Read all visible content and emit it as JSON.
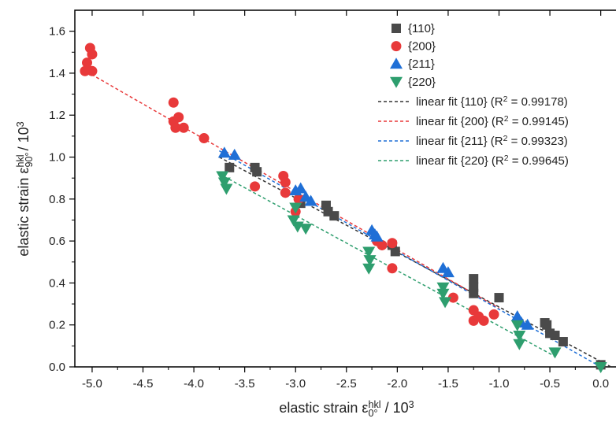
{
  "chart_data": {
    "type": "scatter",
    "x_label": [
      {
        "text": "elastic strain ε"
      },
      {
        "text": "0°",
        "style": "sub"
      },
      {
        "text": "hkl",
        "style": "sup"
      },
      {
        "text": " / 10"
      },
      {
        "text": "3",
        "style": "sup"
      }
    ],
    "y_label": [
      {
        "text": "elastic strain ε"
      },
      {
        "text": "90°",
        "style": "sub"
      },
      {
        "text": "hkl",
        "style": "sup"
      },
      {
        "text": " / 10"
      },
      {
        "text": "3",
        "style": "sup"
      }
    ],
    "xlim": [
      -5.17,
      0.15
    ],
    "ylim": [
      0,
      1.7
    ],
    "xticks": [
      {
        "value": -5,
        "label": "-5.0"
      },
      -4.5,
      {
        "value": -4,
        "label": "-4.0"
      },
      -3.5,
      {
        "value": -3,
        "label": "-3.0"
      },
      -2.5,
      {
        "value": -2,
        "label": "-2.0"
      },
      -1.5,
      {
        "value": -1,
        "label": "-1.0"
      },
      -0.5,
      {
        "value": 0,
        "label": "0.0"
      }
    ],
    "yticks": [
      {
        "value": 0,
        "label": "0.0"
      },
      0.2,
      0.4,
      0.6,
      0.8,
      {
        "value": 1,
        "label": "1.0"
      },
      1.2,
      1.4,
      1.6
    ],
    "series": [
      {
        "name": "{110}",
        "color": "#4a4a4a",
        "marker": "square",
        "x": [
          -3.65,
          -3.4,
          -3.38,
          -2.95,
          -2.7,
          -2.68,
          -2.62,
          -2.05,
          -2.02,
          -1.25,
          -1.25,
          -1.25,
          -1.0,
          -0.55,
          -0.53,
          -0.5,
          -0.45,
          -0.37,
          0.0
        ],
        "values": [
          0.95,
          0.95,
          0.93,
          0.78,
          0.77,
          0.74,
          0.72,
          0.58,
          0.55,
          0.42,
          0.38,
          0.35,
          0.33,
          0.21,
          0.2,
          0.16,
          0.15,
          0.12,
          0.01
        ]
      },
      {
        "name": "{200}",
        "color": "#e8393a",
        "marker": "circle",
        "x": [
          -5.02,
          -5.0,
          -5.05,
          -5.07,
          -5.0,
          -4.2,
          -4.2,
          -4.18,
          -4.15,
          -4.1,
          -3.9,
          -3.4,
          -3.12,
          -3.1,
          -3.1,
          -3.0,
          -2.97,
          -2.2,
          -2.15,
          -2.05,
          -2.05,
          -1.45,
          -1.25,
          -1.25,
          -1.2,
          -1.15,
          -1.05
        ],
        "values": [
          1.52,
          1.49,
          1.45,
          1.41,
          1.41,
          1.26,
          1.17,
          1.14,
          1.19,
          1.14,
          1.09,
          0.86,
          0.91,
          0.88,
          0.83,
          0.74,
          0.8,
          0.6,
          0.58,
          0.59,
          0.47,
          0.33,
          0.27,
          0.22,
          0.24,
          0.22,
          0.25
        ]
      },
      {
        "name": "{211}",
        "color": "#1f6fd6",
        "marker": "triangle-up",
        "x": [
          -3.7,
          -3.6,
          -3.0,
          -2.95,
          -2.9,
          -2.85,
          -2.25,
          -2.22,
          -2.2,
          -1.55,
          -1.5,
          -0.82,
          -0.78,
          -0.72
        ],
        "values": [
          1.02,
          1.01,
          0.84,
          0.85,
          0.81,
          0.79,
          0.65,
          0.63,
          0.62,
          0.47,
          0.45,
          0.24,
          0.21,
          0.2
        ]
      },
      {
        "name": "{220}",
        "color": "#2e9e6e",
        "marker": "triangle-down",
        "x": [
          -3.72,
          -3.7,
          -3.68,
          -3.0,
          -3.02,
          -2.98,
          -2.9,
          -2.28,
          -2.27,
          -2.28,
          -1.55,
          -1.55,
          -1.53,
          -0.82,
          -0.8,
          -0.8,
          -0.45,
          0.0
        ],
        "values": [
          0.91,
          0.88,
          0.85,
          0.76,
          0.7,
          0.67,
          0.66,
          0.55,
          0.51,
          0.47,
          0.38,
          0.35,
          0.31,
          0.2,
          0.15,
          0.11,
          0.07,
          0.0
        ]
      }
    ],
    "fits": [
      {
        "name": [
          {
            "text": "linear fit {110} (R"
          },
          {
            "text": "2",
            "style": "sup"
          },
          {
            "text": " = 0.99178)"
          }
        ],
        "color": "#333333",
        "x": [
          -3.75,
          0.1
        ],
        "values": [
          1.0,
          0.0
        ]
      },
      {
        "name": [
          {
            "text": "linear fit {200} (R"
          },
          {
            "text": "2",
            "style": "sup"
          },
          {
            "text": " = 0.99145)"
          }
        ],
        "color": "#e8393a",
        "x": [
          -5.1,
          -1.0
        ],
        "values": [
          1.42,
          0.28
        ]
      },
      {
        "name": [
          {
            "text": "linear fit {211} (R"
          },
          {
            "text": "2",
            "style": "sup"
          },
          {
            "text": " = 0.99323)"
          }
        ],
        "color": "#1f6fd6",
        "x": [
          -3.75,
          0.0
        ],
        "values": [
          1.03,
          0.0
        ]
      },
      {
        "name": [
          {
            "text": "linear fit {220} (R"
          },
          {
            "text": "2",
            "style": "sup"
          },
          {
            "text": " = 0.99645)"
          }
        ],
        "color": "#2e9e6e",
        "x": [
          -3.75,
          -0.45
        ],
        "values": [
          0.92,
          0.05
        ]
      }
    ]
  }
}
